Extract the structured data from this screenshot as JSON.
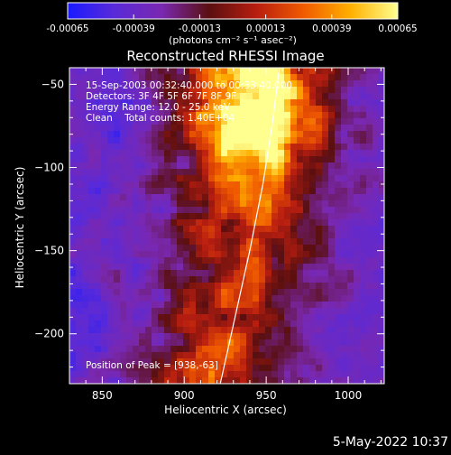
{
  "colorbar": {
    "tick_labels": [
      "-0.00065",
      "-0.00039",
      "-0.00013",
      "0.00013",
      "0.00039",
      "0.00065"
    ],
    "units_label": "(photons cm⁻² s⁻¹ asec⁻²)",
    "range": [
      -0.00065,
      0.00065
    ],
    "stops": [
      "#1a1aff",
      "#5a2ad8",
      "#7a28b0",
      "#5a0f10",
      "#b81e10",
      "#f05a00",
      "#ffb000",
      "#ffff90"
    ]
  },
  "plot": {
    "title": "Reconstructed RHESSI Image",
    "annotations": [
      "15-Sep-2003 00:32:40.000 to 00:33:40.000",
      "Detectors: 3F 4F 5F 6F 7F 8F 9F",
      "Energy Range: 12.0 - 25.0 keV",
      "Clean    Total counts: 1.40E+04"
    ],
    "peak_label": "Position of Peak = [938,-63]",
    "timestamp": "5-May-2022 10:37"
  },
  "chart_data": {
    "type": "heatmap",
    "title": "Reconstructed RHESSI Image",
    "xlabel": "Heliocentric X (arcsec)",
    "ylabel": "Heliocentric Y (arcsec)",
    "xlim": [
      830,
      1022
    ],
    "ylim": [
      -230,
      -40
    ],
    "xticks": [
      850,
      900,
      950,
      1000
    ],
    "yticks": [
      -50,
      -100,
      -150,
      -200
    ],
    "peak": [
      938,
      -63
    ],
    "limb_arc": [
      [
        922,
        -230
      ],
      [
        931,
        -190
      ],
      [
        940,
        -150
      ],
      [
        948,
        -110
      ],
      [
        954,
        -72
      ],
      [
        958,
        -40
      ]
    ]
  }
}
